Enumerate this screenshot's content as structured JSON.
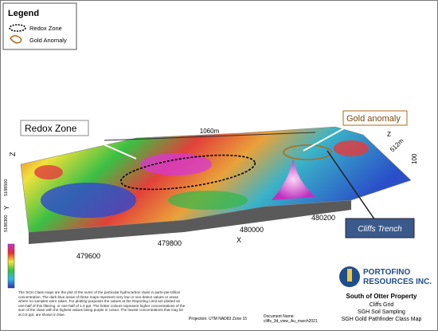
{
  "legend": {
    "title": "Legend",
    "items": [
      "Redox Zone",
      "Gold Anomaly"
    ]
  },
  "map": {
    "callouts": [
      "Redox Zone",
      "Gold anomaly",
      "Cliffs Trench"
    ],
    "dimensions": [
      "1060m",
      "512m",
      "100"
    ],
    "axis_letters": {
      "z_left": "Z",
      "z_right": "Z",
      "y": "Y",
      "x": "X"
    },
    "x_ticks": [
      "479600",
      "479800",
      "480000",
      "480200"
    ],
    "y_ticks": [
      "5188500",
      "5188300"
    ]
  },
  "footer": {
    "note": "The SGH Class maps are the plot of the sums of the particular hydrocarbon class in parts-per-trillion concentration. The dark blue areas of these maps represent very low or non-detect values or areas where no samples were taken. For plotting purposes the values at the Reporting Limit are plotted as one-half of this filtering, or one-half of 1.0 ppt. The hotter colours represent higher concentrations of the sum of the class with the highest values being purple in colour. The lowest concentrations that may be at 0.5 ppt, are shown in blue.",
    "projection": "Projection: UTM NAD83 Zone 15",
    "document_label": "Document Name:",
    "document_name": "cliffs_3d_view_Au_march2021",
    "company": [
      "PORTOFINO",
      "RESOURCES INC."
    ],
    "titles": [
      "South of Otter Property",
      "Cliffs Grid",
      "SGH Soil Sampling",
      "SGH Gold Pathfinder Class Map"
    ]
  }
}
